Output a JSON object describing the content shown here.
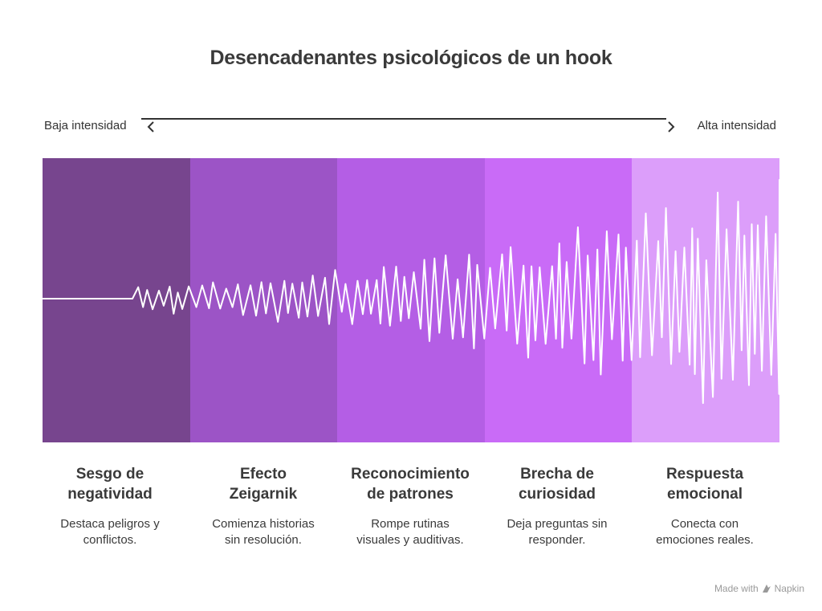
{
  "title": "Desencadenantes psicológicos de un hook",
  "scale": {
    "low_label": "Baja intensidad",
    "high_label": "Alta intensidad"
  },
  "stages": [
    {
      "title": "Sesgo de\nnegatividad",
      "description": "Destaca peligros y\nconflictos.",
      "color": "#77458e"
    },
    {
      "title": "Efecto\nZeigarnik",
      "description": "Comienza historias\nsin resolución.",
      "color": "#9c54c6"
    },
    {
      "title": "Reconocimiento\nde patrones",
      "description": "Rompe rutinas\nvisuales y auditivas.",
      "color": "#b45ee5"
    },
    {
      "title": "Brecha de\ncuriosidad",
      "description": "Deja preguntas sin\nresponder.",
      "color": "#c96bf7"
    },
    {
      "title": "Respuesta\nemocional",
      "description": "Conecta con\nemociones reales.",
      "color": "#dc9efa"
    }
  ],
  "footer": {
    "prefix": "Made with",
    "brand": "Napkin",
    "icon": "napkin-logo-icon"
  }
}
